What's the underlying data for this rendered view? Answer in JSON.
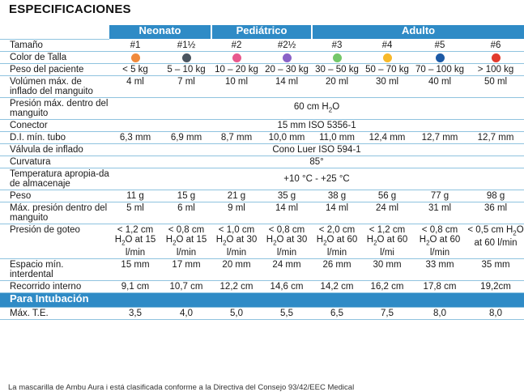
{
  "title": "ESPECIFICACIONES",
  "groups": {
    "neonato": "Neonato",
    "pediatrico": "Pediátrico",
    "adulto": "Adulto"
  },
  "colors": {
    "header_blue": "#2f8bc6",
    "row_rule": "#8fc3df",
    "size_colors": [
      "#f08a3c",
      "#4b5560",
      "#e85a8e",
      "#8a63c7",
      "#74c76a",
      "#f7b92b",
      "#1d5aa5",
      "#e23b2e"
    ]
  },
  "rows": {
    "tamano": {
      "label": "Tamaño",
      "values": [
        "#1",
        "#1½",
        "#2",
        "#2½",
        "#3",
        "#4",
        "#5",
        "#6"
      ]
    },
    "color": {
      "label": "Color de Talla",
      "names": [
        "orange",
        "dark-gray",
        "pink",
        "purple",
        "green",
        "yellow",
        "blue",
        "red"
      ]
    },
    "peso_paciente": {
      "label": "Peso del paciente",
      "values": [
        "< 5 kg",
        "5 – 10 kg",
        "10 – 20 kg",
        "20 – 30 kg",
        "30 – 50 kg",
        "50 – 70 kg",
        "70 – 100 kg",
        "> 100 kg"
      ]
    },
    "volumen": {
      "label": "Volúmen máx. de inflado del manguito",
      "values": [
        "4 ml",
        "7 ml",
        "10 ml",
        "14 ml",
        "20 ml",
        "30 ml",
        "40 ml",
        "50 ml"
      ]
    },
    "presion_max": {
      "label": "Presión máx. dentro del manguito",
      "value": "60 cm H2O"
    },
    "conector": {
      "label": "Conector",
      "value": "15 mm ISO 5356-1"
    },
    "di_tubo": {
      "label": "D.I. mín. tubo",
      "values": [
        "6,3 mm",
        "6,9 mm",
        "8,7 mm",
        "10,0 mm",
        "11,0 mm",
        "12,4 mm",
        "12,7 mm",
        "12,7 mm"
      ]
    },
    "valvula": {
      "label": "Válvula de inflado",
      "value": "Cono Luer ISO 594-1"
    },
    "curvatura": {
      "label": "Curvatura",
      "value": "85°"
    },
    "temperatura": {
      "label": "Temperatura apropia-da de almacenaje",
      "value": "+10 °C - +25 °C"
    },
    "peso": {
      "label": "Peso",
      "values": [
        "11 g",
        "15 g",
        "21 g",
        "35 g",
        "38 g",
        "56 g",
        "77 g",
        "98 g"
      ]
    },
    "presion_dentro": {
      "label": "Máx. presión dentro del manguito",
      "values": [
        "5 ml",
        "6 ml",
        "9 ml",
        "14 ml",
        "14 ml",
        "24 ml",
        "31 ml",
        "36 ml"
      ]
    },
    "goteo": {
      "label": "Presión de goteo",
      "values": [
        "< 1,2 cm H2O at 15 l/min",
        "< 0,8 cm H2O at 15 l/min",
        "< 1,0 cm H2O at 30 l/min",
        "< 0,8 cm H2O at 30 l/min",
        "< 2,0 cm H2O at 60 l/min",
        "< 1,2 cm H2O at 60 l/mi",
        "< 0,8 cm H2O at 60 l/min",
        "< 0,5 cm H2O at 60 l/min"
      ]
    },
    "espacio": {
      "label": "Espacio mín. interdental",
      "values": [
        "15 mm",
        "17 mm",
        "20 mm",
        "24 mm",
        "26 mm",
        "30 mm",
        "33 mm",
        "35 mm"
      ]
    },
    "recorrido": {
      "label": "Recorrido interno",
      "values": [
        "9,1 cm",
        "10,7 cm",
        "12,2 cm",
        "14,6 cm",
        "14,2 cm",
        "16,2 cm",
        "17,8 cm",
        "19,2cm"
      ]
    }
  },
  "intubacion": {
    "header": "Para Intubación",
    "label": "Máx. T.E.",
    "values": [
      "3,5",
      "4,0",
      "5,0",
      "5,5",
      "6,5",
      "7,5",
      "8,0",
      "8,0"
    ]
  },
  "footnote": "La mascarilla de Ambu Aura i está clasificada conforme a la Directiva del Consejo 93/42/EEC Medical"
}
